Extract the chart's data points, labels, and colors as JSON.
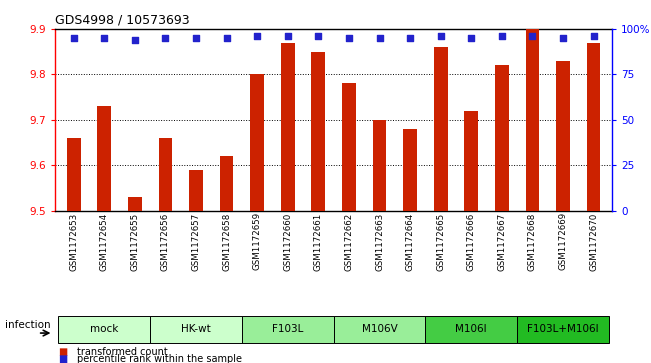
{
  "title": "GDS4998 / 10573693",
  "samples": [
    "GSM1172653",
    "GSM1172654",
    "GSM1172655",
    "GSM1172656",
    "GSM1172657",
    "GSM1172658",
    "GSM1172659",
    "GSM1172660",
    "GSM1172661",
    "GSM1172662",
    "GSM1172663",
    "GSM1172664",
    "GSM1172665",
    "GSM1172666",
    "GSM1172667",
    "GSM1172668",
    "GSM1172669",
    "GSM1172670"
  ],
  "red_values": [
    9.66,
    9.73,
    9.53,
    9.66,
    9.59,
    9.62,
    9.8,
    9.87,
    9.85,
    9.78,
    9.7,
    9.68,
    9.86,
    9.72,
    9.82,
    9.9,
    9.83,
    9.87
  ],
  "blue_values": [
    95,
    95,
    94,
    95,
    95,
    95,
    96,
    96,
    96,
    95,
    95,
    95,
    96,
    95,
    96,
    96,
    95,
    96
  ],
  "groups": [
    {
      "label": "mock",
      "indices": [
        0,
        1,
        2
      ],
      "color": "#ccffcc"
    },
    {
      "label": "HK-wt",
      "indices": [
        3,
        4,
        5
      ],
      "color": "#ccffcc"
    },
    {
      "label": "F103L",
      "indices": [
        6,
        7,
        8
      ],
      "color": "#99ee99"
    },
    {
      "label": "M106V",
      "indices": [
        9,
        10,
        11
      ],
      "color": "#99ee99"
    },
    {
      "label": "M106I",
      "indices": [
        12,
        13,
        14
      ],
      "color": "#44cc44"
    },
    {
      "label": "F103L+M106I",
      "indices": [
        15,
        16,
        17
      ],
      "color": "#22bb22"
    }
  ],
  "ylim_left": [
    9.5,
    9.9
  ],
  "ylim_right": [
    0,
    100
  ],
  "yticks_left": [
    9.5,
    9.6,
    9.7,
    9.8,
    9.9
  ],
  "yticks_right": [
    0,
    25,
    50,
    75,
    100
  ],
  "ytick_labels_right": [
    "0",
    "25",
    "50",
    "75",
    "100%"
  ],
  "bar_color": "#cc2200",
  "dot_color": "#2222cc",
  "xlabel": "infection",
  "legend_items": [
    "transformed count",
    "percentile rank within the sample"
  ],
  "xlim": [
    -0.6,
    17.6
  ]
}
